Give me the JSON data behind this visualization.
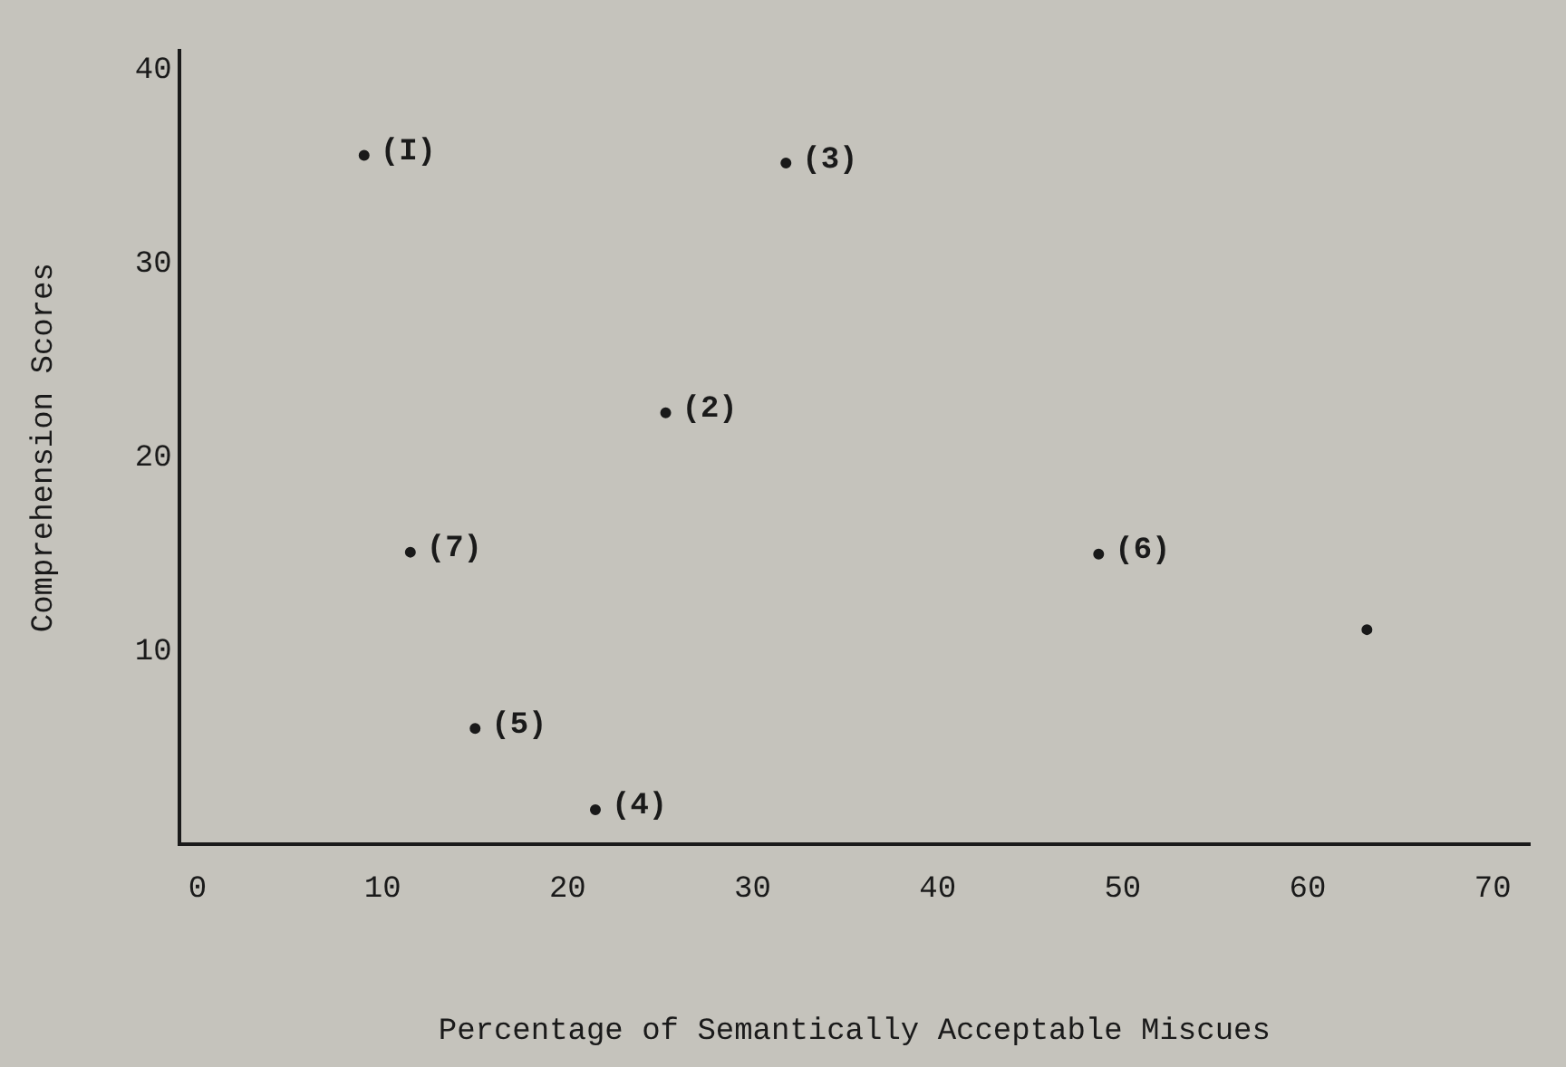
{
  "chart_data": {
    "type": "scatter",
    "xlabel": "Percentage of Semantically Acceptable Miscues",
    "ylabel": "Comprehension Scores",
    "x": [
      9,
      25.3,
      31.8,
      21.5,
      15,
      48.7,
      11.5,
      63.2
    ],
    "values": [
      35.6,
      22.3,
      35.2,
      1.8,
      6,
      15,
      15.1,
      11.1
    ],
    "color": "#1a1a1a",
    "marker": "circle",
    "xlim": [
      -1,
      72
    ],
    "xticks": [
      0,
      10,
      20,
      30,
      40,
      50,
      60,
      70
    ],
    "ylim": [
      0,
      41
    ],
    "yticks": [
      10,
      20,
      30,
      40
    ],
    "grid": false,
    "legend": false,
    "annotations": [
      {
        "text": "(I)",
        "x": 9,
        "y": 35.6
      },
      {
        "text": "(2)",
        "x": 25.3,
        "y": 22.3
      },
      {
        "text": "(3)",
        "x": 31.8,
        "y": 35.2
      },
      {
        "text": "(4)",
        "x": 21.5,
        "y": 1.8
      },
      {
        "text": "(5)",
        "x": 15,
        "y": 6
      },
      {
        "text": "(6)",
        "x": 48.7,
        "y": 15
      },
      {
        "text": "(7)",
        "x": 11.5,
        "y": 15.1
      }
    ]
  }
}
